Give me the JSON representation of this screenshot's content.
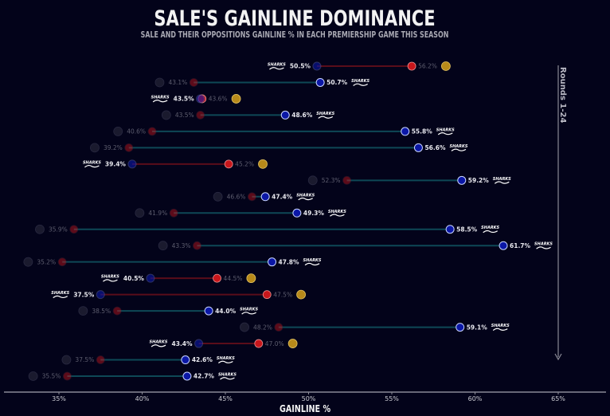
{
  "colors": {
    "background": "#03031a",
    "sale_dot": "#0b17a6",
    "opp_dot": "#c8161b",
    "sale_ahead_line": "#0e4856",
    "opp_ahead_line": "#5a0d1a",
    "axis": "#8a8a96"
  },
  "chart_data": {
    "type": "dumbbell",
    "title": "SALE'S GAINLINE DOMINANCE",
    "subtitle": "SALE AND THEIR OPPOSITIONS GAINLINE % IN EACH PREMIERSHIP GAME THIS SEASON",
    "xlabel": "GAINLINE %",
    "xlim": [
      35,
      65
    ],
    "xticks": [
      "35%",
      "40%",
      "45%",
      "50%",
      "55%",
      "60%",
      "65%"
    ],
    "xtick_values": [
      35,
      40,
      45,
      50,
      55,
      60,
      65
    ],
    "side_annotation": "Rounds 1-24",
    "sale_logo_text": "SHARKS",
    "games": [
      {
        "opponent_logo": "northampton-logo",
        "sale": 50.5,
        "opp": 56.2,
        "sale_label": "50.5%",
        "opp_label": "56.2%"
      },
      {
        "opponent_logo": "bath-logo",
        "sale": 50.7,
        "opp": 43.1,
        "sale_label": "50.7%",
        "opp_label": "43.1%"
      },
      {
        "opponent_logo": "exeter-logo",
        "sale": 43.5,
        "opp": 43.6,
        "sale_label": "43.5%",
        "opp_label": "43.6%"
      },
      {
        "opponent_logo": "leicester-logo",
        "sale": 48.6,
        "opp": 43.5,
        "sale_label": "48.6%",
        "opp_label": "43.5%"
      },
      {
        "opponent_logo": "gloucester-logo",
        "sale": 55.8,
        "opp": 40.6,
        "sale_label": "55.8%",
        "opp_label": "40.6%"
      },
      {
        "opponent_logo": "harlequins-logo",
        "sale": 56.6,
        "opp": 39.2,
        "sale_label": "56.6%",
        "opp_label": "39.2%"
      },
      {
        "opponent_logo": "saracens-logo",
        "sale": 39.4,
        "opp": 45.2,
        "sale_label": "39.4%",
        "opp_label": "45.2%"
      },
      {
        "opponent_logo": "gloucester-logo",
        "sale": 59.2,
        "opp": 52.3,
        "sale_label": "59.2%",
        "opp_label": "52.3%"
      },
      {
        "opponent_logo": "bristol-logo",
        "sale": 47.4,
        "opp": 46.6,
        "sale_label": "47.4%",
        "opp_label": "46.6%"
      },
      {
        "opponent_logo": "newcastle-logo",
        "sale": 49.3,
        "opp": 41.9,
        "sale_label": "49.3%",
        "opp_label": "41.9%"
      },
      {
        "opponent_logo": "leicester-logo",
        "sale": 58.5,
        "opp": 35.9,
        "sale_label": "58.5%",
        "opp_label": "35.9%"
      },
      {
        "opponent_logo": "harlequins-logo",
        "sale": 61.7,
        "opp": 43.3,
        "sale_label": "61.7%",
        "opp_label": "43.3%"
      },
      {
        "opponent_logo": "bath-logo",
        "sale": 47.8,
        "opp": 35.2,
        "sale_label": "47.8%",
        "opp_label": "35.2%"
      },
      {
        "opponent_logo": "northampton-logo",
        "sale": 40.5,
        "opp": 44.5,
        "sale_label": "40.5%",
        "opp_label": "44.5%"
      },
      {
        "opponent_logo": "exeter-logo",
        "sale": 37.5,
        "opp": 47.5,
        "sale_label": "37.5%",
        "opp_label": "47.5%"
      },
      {
        "opponent_logo": "saracens-logo",
        "sale": 44.0,
        "opp": 38.5,
        "sale_label": "44.0%",
        "opp_label": "38.5%"
      },
      {
        "opponent_logo": "london-irish-logo",
        "sale": 59.1,
        "opp": 48.2,
        "sale_label": "59.1%",
        "opp_label": "48.2%"
      },
      {
        "opponent_logo": "bristol-logo",
        "sale": 43.4,
        "opp": 47.0,
        "sale_label": "43.4%",
        "opp_label": "47.0%"
      },
      {
        "opponent_logo": "gloucester-logo",
        "sale": 42.6,
        "opp": 37.5,
        "sale_label": "42.6%",
        "opp_label": "37.5%"
      },
      {
        "opponent_logo": "newcastle-logo",
        "sale": 42.7,
        "opp": 35.5,
        "sale_label": "42.7%",
        "opp_label": "35.5%"
      }
    ]
  }
}
